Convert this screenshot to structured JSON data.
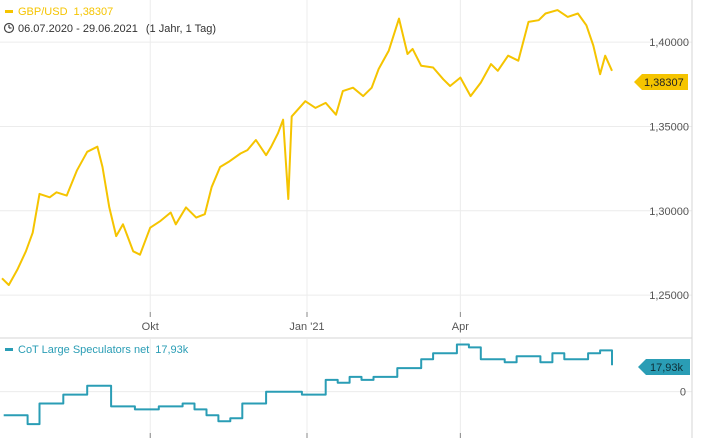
{
  "price_panel": {
    "symbol_label": "GBP/USD",
    "last_value_label": "1,38307",
    "range_label": "06.07.2020 - 29.06.2021",
    "period_label": "(1 Jahr, 1 Tag)",
    "color": "#f5c400"
  },
  "indicator_panel": {
    "label": "CoT Large Speculators net",
    "last_value_label": "17,93k",
    "color": "#2a9db5"
  },
  "chart_data": [
    {
      "type": "line",
      "series": [
        {
          "name": "GBP/USD",
          "color": "#f5c400",
          "x": [
            "2020-07-06",
            "2020-07-10",
            "2020-07-15",
            "2020-07-20",
            "2020-07-24",
            "2020-07-28",
            "2020-08-03",
            "2020-08-07",
            "2020-08-13",
            "2020-08-19",
            "2020-08-25",
            "2020-08-31",
            "2020-09-03",
            "2020-09-07",
            "2020-09-11",
            "2020-09-15",
            "2020-09-21",
            "2020-09-25",
            "2020-10-01",
            "2020-10-07",
            "2020-10-13",
            "2020-10-16",
            "2020-10-22",
            "2020-10-28",
            "2020-11-02",
            "2020-11-06",
            "2020-11-11",
            "2020-11-16",
            "2020-11-23",
            "2020-11-27",
            "2020-12-02",
            "2020-12-08",
            "2020-12-11",
            "2020-12-15",
            "2020-12-18",
            "2020-12-21",
            "2020-12-23",
            "2020-12-31",
            "2021-01-06",
            "2021-01-12",
            "2021-01-18",
            "2021-01-22",
            "2021-01-28",
            "2021-02-03",
            "2021-02-08",
            "2021-02-12",
            "2021-02-18",
            "2021-02-24",
            "2021-03-01",
            "2021-03-04",
            "2021-03-09",
            "2021-03-16",
            "2021-03-22",
            "2021-03-26",
            "2021-04-01",
            "2021-04-07",
            "2021-04-13",
            "2021-04-19",
            "2021-04-23",
            "2021-04-29",
            "2021-05-05",
            "2021-05-11",
            "2021-05-17",
            "2021-05-21",
            "2021-05-28",
            "2021-06-03",
            "2021-06-09",
            "2021-06-14",
            "2021-06-18",
            "2021-06-22",
            "2021-06-25",
            "2021-06-29"
          ],
          "values": [
            1.26,
            1.256,
            1.265,
            1.276,
            1.287,
            1.31,
            1.308,
            1.311,
            1.309,
            1.324,
            1.335,
            1.338,
            1.326,
            1.302,
            1.285,
            1.292,
            1.276,
            1.274,
            1.29,
            1.294,
            1.299,
            1.292,
            1.302,
            1.296,
            1.298,
            1.314,
            1.326,
            1.329,
            1.334,
            1.336,
            1.342,
            1.333,
            1.338,
            1.346,
            1.354,
            1.307,
            1.356,
            1.365,
            1.361,
            1.364,
            1.357,
            1.371,
            1.373,
            1.368,
            1.373,
            1.384,
            1.395,
            1.414,
            1.393,
            1.396,
            1.386,
            1.385,
            1.378,
            1.374,
            1.379,
            1.368,
            1.376,
            1.387,
            1.383,
            1.392,
            1.389,
            1.412,
            1.413,
            1.417,
            1.419,
            1.415,
            1.417,
            1.41,
            1.398,
            1.381,
            1.392,
            1.383
          ]
        }
      ],
      "x_ticks": [
        "Okt",
        "Jan '21",
        "Apr"
      ],
      "y_ticks": [
        "1,25000",
        "1,30000",
        "1,35000",
        "1,40000"
      ],
      "ylim": [
        1.24,
        1.425
      ],
      "grid": true,
      "last_value_tag": "1,38307"
    },
    {
      "type": "line",
      "series": [
        {
          "name": "CoT Large Speculators net",
          "color": "#2a9db5",
          "x": [
            "2020-07-07",
            "2020-07-14",
            "2020-07-21",
            "2020-07-28",
            "2020-08-04",
            "2020-08-11",
            "2020-08-18",
            "2020-08-25",
            "2020-09-01",
            "2020-09-08",
            "2020-09-15",
            "2020-09-22",
            "2020-09-29",
            "2020-10-06",
            "2020-10-13",
            "2020-10-20",
            "2020-10-27",
            "2020-11-03",
            "2020-11-10",
            "2020-11-17",
            "2020-11-24",
            "2020-12-01",
            "2020-12-08",
            "2020-12-15",
            "2020-12-22",
            "2020-12-29",
            "2021-01-05",
            "2021-01-12",
            "2021-01-19",
            "2021-01-26",
            "2021-02-02",
            "2021-02-09",
            "2021-02-16",
            "2021-02-23",
            "2021-03-02",
            "2021-03-09",
            "2021-03-16",
            "2021-03-23",
            "2021-03-30",
            "2021-04-06",
            "2021-04-13",
            "2021-04-20",
            "2021-04-27",
            "2021-05-04",
            "2021-05-11",
            "2021-05-18",
            "2021-05-25",
            "2021-06-01",
            "2021-06-08",
            "2021-06-15",
            "2021-06-22",
            "2021-06-29"
          ],
          "values": [
            -16,
            -16,
            -22,
            -8,
            -8,
            -2,
            -2,
            4,
            4,
            -10,
            -10,
            -12,
            -12,
            -10,
            -10,
            -8,
            -12,
            -16,
            -20,
            -18,
            -8,
            -8,
            0,
            0,
            0,
            -2,
            -2,
            8,
            6,
            10,
            8,
            10,
            10,
            16,
            16,
            22,
            26,
            26,
            32,
            30,
            22,
            22,
            20,
            24,
            24,
            20,
            26,
            22,
            22,
            26,
            28,
            17.93
          ]
        }
      ],
      "x_ticks": [
        "Okt",
        "Jan '21",
        "Apr"
      ],
      "y_ticks": [
        "0"
      ],
      "grid": true,
      "last_value_tag": "17,93k"
    }
  ]
}
